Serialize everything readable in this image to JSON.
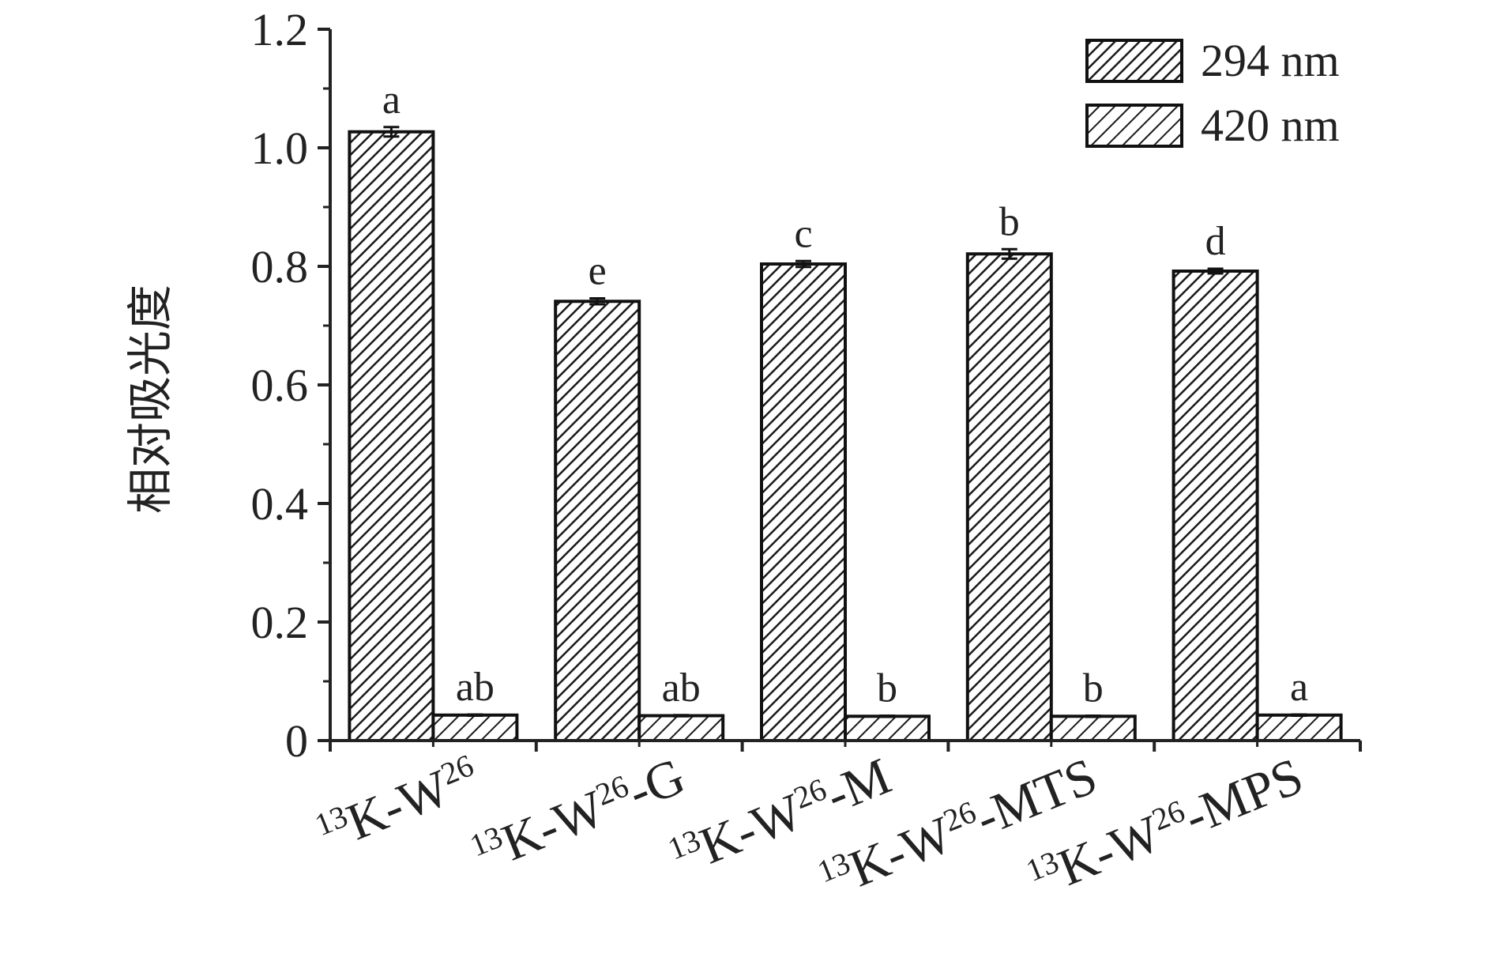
{
  "chart_data": {
    "type": "bar",
    "title": "",
    "xlabel": "",
    "ylabel": "相对吸光度",
    "ylim": [
      0,
      1.2
    ],
    "yticks": [
      {
        "value": 0,
        "label": "0"
      },
      {
        "value": 0.2,
        "label": "0.2"
      },
      {
        "value": 0.4,
        "label": "0.4"
      },
      {
        "value": 0.6,
        "label": "0.6"
      },
      {
        "value": 0.8,
        "label": "0.8"
      },
      {
        "value": 1.0,
        "label": "1.0"
      },
      {
        "value": 1.2,
        "label": "1.2"
      }
    ],
    "categories": [
      {
        "pre": "13",
        "a": "K-W",
        "sup": "26",
        "b": ""
      },
      {
        "pre": "13",
        "a": "K-W",
        "sup": "26",
        "b": "-G"
      },
      {
        "pre": "13",
        "a": "K-W",
        "sup": "26",
        "b": "-M"
      },
      {
        "pre": "13",
        "a": "K-W",
        "sup": "26",
        "b": "-MTS"
      },
      {
        "pre": "13",
        "a": "K-W",
        "sup": "26",
        "b": "-MPS"
      }
    ],
    "series": [
      {
        "name": "294 nm",
        "values": [
          1.027,
          0.741,
          0.804,
          0.821,
          0.792
        ],
        "errors": [
          0.008,
          0.005,
          0.005,
          0.008,
          0.004
        ],
        "labels": [
          "a",
          "e",
          "c",
          "b",
          "d"
        ]
      },
      {
        "name": "420 nm",
        "values": [
          0.043,
          0.042,
          0.041,
          0.041,
          0.043
        ],
        "errors": [
          0.001,
          0.001,
          0.001,
          0.001,
          0.001
        ],
        "labels": [
          "ab",
          "ab",
          "b",
          "b",
          "a"
        ]
      }
    ],
    "legend_position": "top-right",
    "grid": false
  }
}
